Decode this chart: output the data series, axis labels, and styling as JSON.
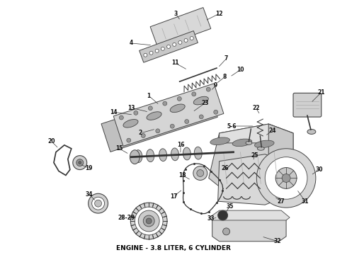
{
  "title": "ENGINE - 3.8 LITER, 6 CYLINDER",
  "background_color": "#ffffff",
  "title_fontsize": 6.5,
  "title_color": "#000000",
  "fig_width": 4.9,
  "fig_height": 3.6,
  "dpi": 100
}
